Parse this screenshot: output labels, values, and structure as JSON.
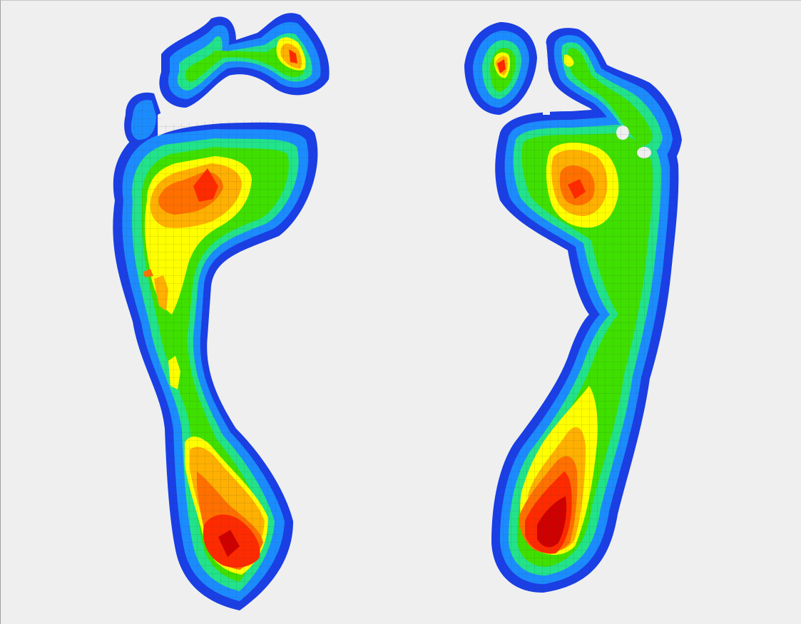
{
  "view": {
    "background": "#efefef",
    "grid_color": "#3a3a3a"
  },
  "color_scale": [
    "#1a3fe6",
    "#1b8cff",
    "#24c8f0",
    "#22e38a",
    "#3fe000",
    "#a8f000",
    "#ffff00",
    "#ffb000",
    "#ff7000",
    "#ff2a00",
    "#d00000"
  ],
  "feet": [
    {
      "side": "left"
    },
    {
      "side": "right"
    }
  ]
}
